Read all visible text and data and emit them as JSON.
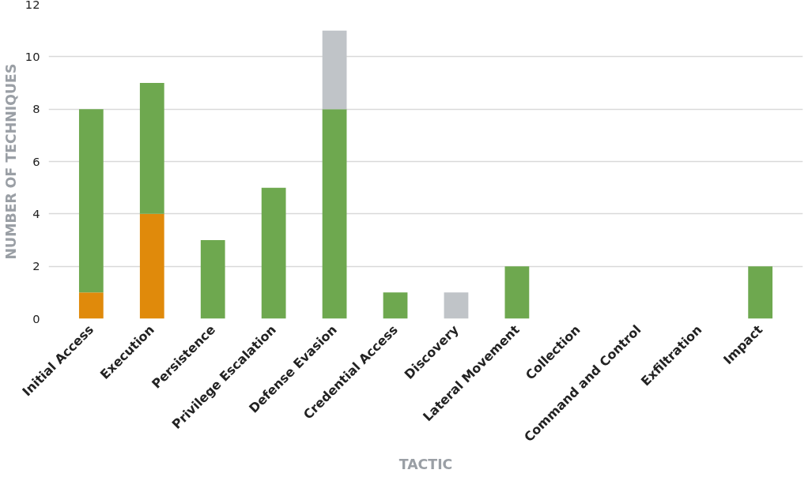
{
  "chart_data": {
    "type": "bar",
    "stacked": true,
    "xlabel": "TACTIC",
    "ylabel": "NUMBER OF TECHNIQUES",
    "categories": [
      "Initial Access",
      "Execution",
      "Persistence",
      "Privilege Escalation",
      "Defense Evasion",
      "Credential Access",
      "Discovery",
      "Lateral Movement",
      "Collection",
      "Command and Control",
      "Exfiltration",
      "Impact"
    ],
    "series": [
      {
        "color": "#e08a0b",
        "values": [
          1,
          4,
          0,
          0,
          0,
          0,
          0,
          0,
          0,
          0,
          0,
          0
        ]
      },
      {
        "color": "#6ea84f",
        "values": [
          7,
          5,
          3,
          5,
          8,
          1,
          0,
          2,
          0,
          0,
          0,
          2
        ]
      },
      {
        "color": "#c0c4c8",
        "values": [
          0,
          0,
          0,
          0,
          3,
          0,
          1,
          0,
          0,
          0,
          0,
          0
        ]
      }
    ],
    "ylim": [
      0,
      12
    ],
    "yticks": [
      0,
      2,
      4,
      6,
      8,
      10,
      12
    ],
    "grid": "y"
  }
}
